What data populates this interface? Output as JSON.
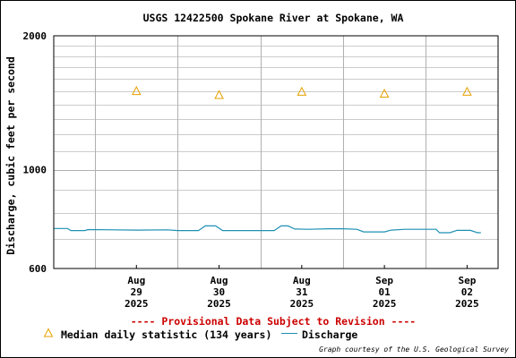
{
  "chart_data": {
    "type": "line",
    "title": "USGS 12422500 Spokane River at Spokane, WA",
    "ylabel": "Discharge, cubic feet per second",
    "xlabel": "",
    "y_scale": "log",
    "ylim": [
      600,
      2000
    ],
    "y_ticks": [
      600,
      1000,
      2000
    ],
    "xlim": [
      "2025-08-28T12:00",
      "2025-09-02T21:00"
    ],
    "x_ticks": [
      {
        "t": "2025-08-29T12:00",
        "lines": [
          "Aug",
          "29",
          "2025"
        ]
      },
      {
        "t": "2025-08-30T12:00",
        "lines": [
          "Aug",
          "30",
          "2025"
        ]
      },
      {
        "t": "2025-08-31T12:00",
        "lines": [
          "Aug",
          "31",
          "2025"
        ]
      },
      {
        "t": "2025-09-01T12:00",
        "lines": [
          "Sep",
          "01",
          "2025"
        ]
      },
      {
        "t": "2025-09-02T12:00",
        "lines": [
          "Sep",
          "02",
          "2025"
        ]
      }
    ],
    "grid": true,
    "provisional_note": "---- Provisional Data Subject to Revision ----",
    "credit": "Graph courtesy of the U.S. Geological Survey",
    "series": [
      {
        "name": "Median daily statistic (134 years)",
        "kind": "marker",
        "marker": "triangle",
        "color": "#e6a100",
        "points": [
          {
            "t": "2025-08-29T12:00",
            "y": 1500
          },
          {
            "t": "2025-08-30T12:00",
            "y": 1470
          },
          {
            "t": "2025-08-31T12:00",
            "y": 1495
          },
          {
            "t": "2025-09-01T12:00",
            "y": 1480
          },
          {
            "t": "2025-09-02T12:00",
            "y": 1495
          }
        ]
      },
      {
        "name": "Discharge",
        "kind": "line",
        "color": "#1e90b4",
        "points": [
          {
            "t": "2025-08-28T12:00",
            "y": 738
          },
          {
            "t": "2025-08-28T16:00",
            "y": 738
          },
          {
            "t": "2025-08-28T17:00",
            "y": 730
          },
          {
            "t": "2025-08-28T21:00",
            "y": 730
          },
          {
            "t": "2025-08-28T22:00",
            "y": 734
          },
          {
            "t": "2025-08-29T12:00",
            "y": 732
          },
          {
            "t": "2025-08-29T21:00",
            "y": 733
          },
          {
            "t": "2025-08-30T00:00",
            "y": 730
          },
          {
            "t": "2025-08-30T06:00",
            "y": 730
          },
          {
            "t": "2025-08-30T08:00",
            "y": 748
          },
          {
            "t": "2025-08-30T11:00",
            "y": 748
          },
          {
            "t": "2025-08-30T13:00",
            "y": 730
          },
          {
            "t": "2025-08-31T04:00",
            "y": 730
          },
          {
            "t": "2025-08-31T06:00",
            "y": 748
          },
          {
            "t": "2025-08-31T08:00",
            "y": 748
          },
          {
            "t": "2025-08-31T10:00",
            "y": 736
          },
          {
            "t": "2025-08-31T14:00",
            "y": 735
          },
          {
            "t": "2025-08-31T20:00",
            "y": 737
          },
          {
            "t": "2025-09-01T00:00",
            "y": 737
          },
          {
            "t": "2025-09-01T04:00",
            "y": 735
          },
          {
            "t": "2025-09-01T06:00",
            "y": 725
          },
          {
            "t": "2025-09-01T12:00",
            "y": 725
          },
          {
            "t": "2025-09-01T14:00",
            "y": 732
          },
          {
            "t": "2025-09-01T18:00",
            "y": 735
          },
          {
            "t": "2025-09-02T03:00",
            "y": 735
          },
          {
            "t": "2025-09-02T04:00",
            "y": 722
          },
          {
            "t": "2025-09-02T07:00",
            "y": 722
          },
          {
            "t": "2025-09-02T09:00",
            "y": 731
          },
          {
            "t": "2025-09-02T13:00",
            "y": 731
          },
          {
            "t": "2025-09-02T15:00",
            "y": 722
          },
          {
            "t": "2025-09-02T16:00",
            "y": 722
          }
        ]
      }
    ]
  }
}
